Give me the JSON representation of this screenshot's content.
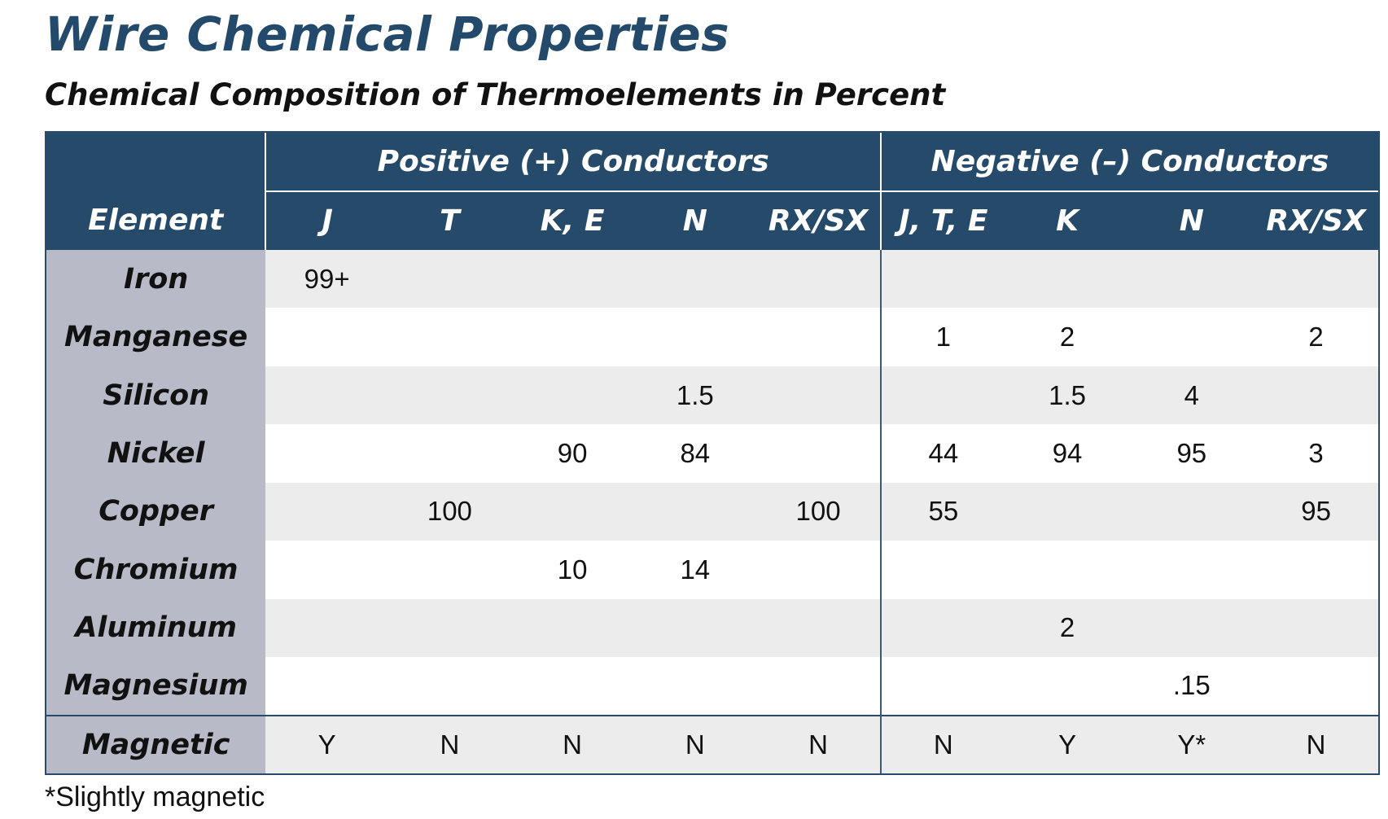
{
  "title": "Wire Chemical Properties",
  "subtitle": "Chemical Composition of Thermoelements in Percent",
  "table": {
    "element_header": "Element",
    "groups": [
      {
        "label": "Positive (+) Conductors",
        "columns": [
          "J",
          "T",
          "K, E",
          "N",
          "RX/SX"
        ]
      },
      {
        "label": "Negative (–) Conductors",
        "columns": [
          "J, T, E",
          "K",
          "N",
          "RX/SX"
        ]
      }
    ],
    "rows": [
      {
        "element": "Iron",
        "values": [
          "99+",
          "",
          "",
          "",
          "",
          "",
          "",
          "",
          ""
        ]
      },
      {
        "element": "Manganese",
        "values": [
          "",
          "",
          "",
          "",
          "",
          "1",
          "2",
          "",
          "2"
        ]
      },
      {
        "element": "Silicon",
        "values": [
          "",
          "",
          "",
          "1.5",
          "",
          "",
          "1.5",
          "4",
          ""
        ]
      },
      {
        "element": "Nickel",
        "values": [
          "",
          "",
          "90",
          "84",
          "",
          "44",
          "94",
          "95",
          "3"
        ]
      },
      {
        "element": "Copper",
        "values": [
          "",
          "100",
          "",
          "",
          "100",
          "55",
          "",
          "",
          "95"
        ]
      },
      {
        "element": "Chromium",
        "values": [
          "",
          "",
          "10",
          "14",
          "",
          "",
          "",
          "",
          ""
        ]
      },
      {
        "element": "Aluminum",
        "values": [
          "",
          "",
          "",
          "",
          "",
          "",
          "2",
          "",
          ""
        ]
      },
      {
        "element": "Magnesium",
        "values": [
          "",
          "",
          "",
          "",
          "",
          "",
          "",
          ".15",
          ""
        ]
      },
      {
        "element": "Magnetic",
        "values": [
          "Y",
          "N",
          "N",
          "N",
          "N",
          "N",
          "Y",
          "Y*",
          "N"
        ]
      }
    ]
  },
  "footnote": "*Slightly magnetic"
}
